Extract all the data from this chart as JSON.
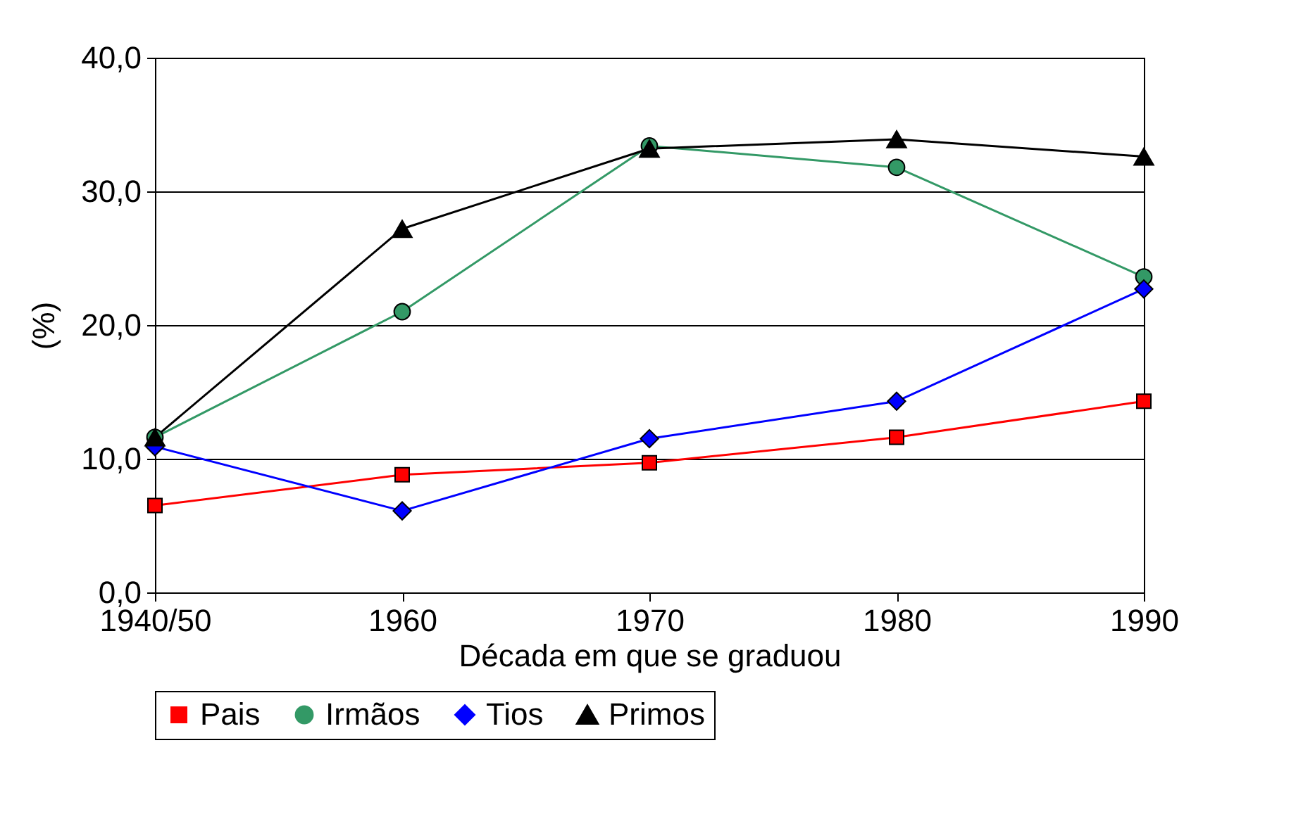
{
  "chart_data": {
    "type": "line",
    "xlabel": "Década em que se graduou",
    "ylabel": "(%)",
    "categories": [
      "1940/50",
      "1960",
      "1970",
      "1980",
      "1990"
    ],
    "series": [
      {
        "name": "Pais",
        "color": "#ff0000",
        "marker": "square",
        "values": [
          6.5,
          8.8,
          9.7,
          11.6,
          14.3
        ]
      },
      {
        "name": "Irmãos",
        "color": "#339966",
        "marker": "circle",
        "values": [
          11.6,
          21.0,
          33.4,
          31.8,
          23.6
        ]
      },
      {
        "name": "Tios",
        "color": "#0000ff",
        "marker": "diamond",
        "values": [
          10.9,
          6.1,
          11.5,
          14.3,
          22.7
        ]
      },
      {
        "name": "Primos",
        "color": "#000000",
        "marker": "triangle",
        "values": [
          11.6,
          27.2,
          33.2,
          33.9,
          32.6
        ]
      }
    ],
    "ylim": [
      0,
      40
    ],
    "yticks": [
      {
        "value": 0,
        "label": "0,0"
      },
      {
        "value": 10,
        "label": "10,0"
      },
      {
        "value": 20,
        "label": "20,0"
      },
      {
        "value": 30,
        "label": "30,0"
      },
      {
        "value": 40,
        "label": "40,0"
      }
    ],
    "grid": "y",
    "legend": "bottom",
    "line_style": "solid"
  }
}
